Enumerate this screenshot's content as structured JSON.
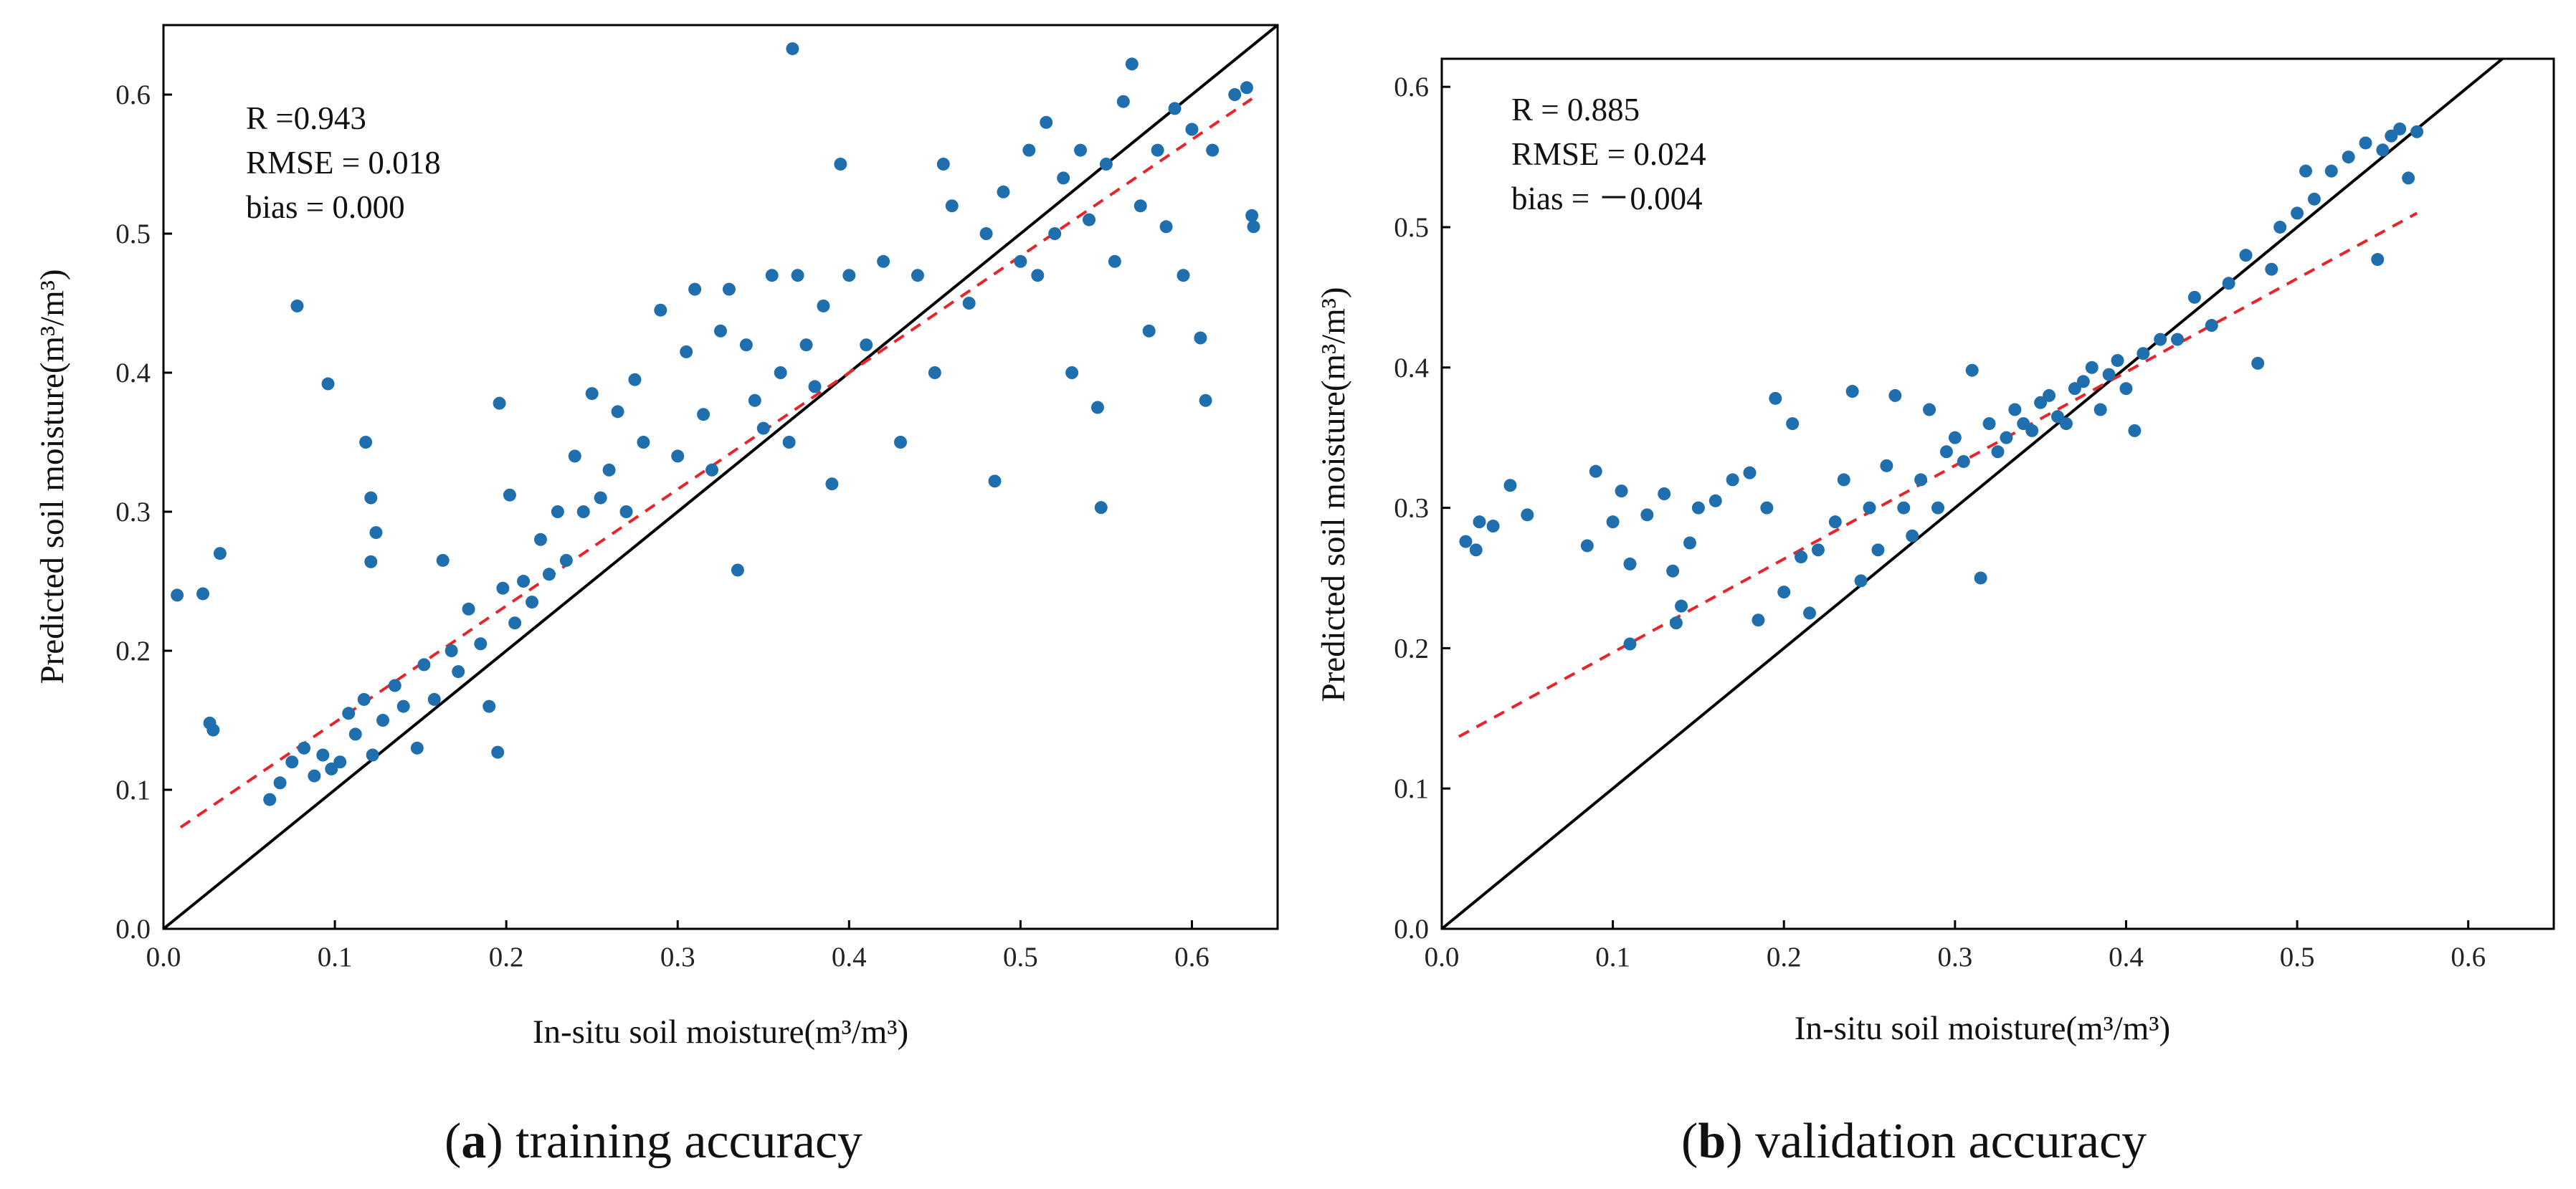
{
  "colors": {
    "points": "#1f6fae",
    "one_to_one": "#000000",
    "fit": "#e8242a"
  },
  "chart_data": [
    {
      "id": "a",
      "type": "scatter",
      "xlabel": "In-situ soil moisture(m³/m³)",
      "ylabel": "Predicted soil moisture(m³/m³)",
      "xlim": [
        0,
        0.65
      ],
      "ylim": [
        0,
        0.65
      ],
      "xticks": [
        "0.0",
        "0.1",
        "0.2",
        "0.3",
        "0.4",
        "0.5",
        "0.6"
      ],
      "yticks": [
        "0.0",
        "0.1",
        "0.2",
        "0.3",
        "0.4",
        "0.5",
        "0.6"
      ],
      "stats": [
        "R =0.943",
        "RMSE = 0.018",
        "bias = 0.000"
      ],
      "one_to_one": [
        [
          0,
          0
        ],
        [
          0.65,
          0.65
        ]
      ],
      "fit_line": [
        [
          0.01,
          0.073
        ],
        [
          0.635,
          0.597
        ]
      ],
      "caption_bold": "a",
      "caption_text": " training accuracy",
      "points": [
        [
          0.367,
          0.633
        ],
        [
          0.008,
          0.24
        ],
        [
          0.023,
          0.241
        ],
        [
          0.033,
          0.27
        ],
        [
          0.027,
          0.148
        ],
        [
          0.029,
          0.143
        ],
        [
          0.078,
          0.448
        ],
        [
          0.096,
          0.392
        ],
        [
          0.118,
          0.35
        ],
        [
          0.121,
          0.31
        ],
        [
          0.124,
          0.285
        ],
        [
          0.121,
          0.264
        ],
        [
          0.062,
          0.093
        ],
        [
          0.068,
          0.105
        ],
        [
          0.075,
          0.12
        ],
        [
          0.082,
          0.13
        ],
        [
          0.088,
          0.11
        ],
        [
          0.093,
          0.125
        ],
        [
          0.098,
          0.115
        ],
        [
          0.103,
          0.12
        ],
        [
          0.108,
          0.155
        ],
        [
          0.112,
          0.14
        ],
        [
          0.117,
          0.165
        ],
        [
          0.122,
          0.125
        ],
        [
          0.128,
          0.15
        ],
        [
          0.135,
          0.175
        ],
        [
          0.14,
          0.16
        ],
        [
          0.148,
          0.13
        ],
        [
          0.152,
          0.19
        ],
        [
          0.158,
          0.165
        ],
        [
          0.163,
          0.265
        ],
        [
          0.168,
          0.2
        ],
        [
          0.172,
          0.185
        ],
        [
          0.178,
          0.23
        ],
        [
          0.185,
          0.205
        ],
        [
          0.19,
          0.16
        ],
        [
          0.195,
          0.127
        ],
        [
          0.196,
          0.378
        ],
        [
          0.198,
          0.245
        ],
        [
          0.202,
          0.312
        ],
        [
          0.205,
          0.22
        ],
        [
          0.21,
          0.25
        ],
        [
          0.215,
          0.235
        ],
        [
          0.22,
          0.28
        ],
        [
          0.225,
          0.255
        ],
        [
          0.23,
          0.3
        ],
        [
          0.235,
          0.265
        ],
        [
          0.24,
          0.34
        ],
        [
          0.245,
          0.3
        ],
        [
          0.25,
          0.385
        ],
        [
          0.255,
          0.31
        ],
        [
          0.26,
          0.33
        ],
        [
          0.265,
          0.372
        ],
        [
          0.27,
          0.3
        ],
        [
          0.275,
          0.395
        ],
        [
          0.28,
          0.35
        ],
        [
          0.29,
          0.445
        ],
        [
          0.3,
          0.34
        ],
        [
          0.305,
          0.415
        ],
        [
          0.31,
          0.46
        ],
        [
          0.315,
          0.37
        ],
        [
          0.32,
          0.33
        ],
        [
          0.325,
          0.43
        ],
        [
          0.33,
          0.46
        ],
        [
          0.335,
          0.258
        ],
        [
          0.34,
          0.42
        ],
        [
          0.345,
          0.38
        ],
        [
          0.35,
          0.36
        ],
        [
          0.355,
          0.47
        ],
        [
          0.36,
          0.4
        ],
        [
          0.365,
          0.35
        ],
        [
          0.37,
          0.47
        ],
        [
          0.375,
          0.42
        ],
        [
          0.38,
          0.39
        ],
        [
          0.385,
          0.448
        ],
        [
          0.39,
          0.32
        ],
        [
          0.395,
          0.55
        ],
        [
          0.4,
          0.47
        ],
        [
          0.41,
          0.42
        ],
        [
          0.42,
          0.48
        ],
        [
          0.43,
          0.35
        ],
        [
          0.44,
          0.47
        ],
        [
          0.45,
          0.4
        ],
        [
          0.455,
          0.55
        ],
        [
          0.46,
          0.52
        ],
        [
          0.47,
          0.45
        ],
        [
          0.48,
          0.5
        ],
        [
          0.485,
          0.322
        ],
        [
          0.49,
          0.53
        ],
        [
          0.5,
          0.48
        ],
        [
          0.505,
          0.56
        ],
        [
          0.51,
          0.47
        ],
        [
          0.515,
          0.58
        ],
        [
          0.52,
          0.5
        ],
        [
          0.525,
          0.54
        ],
        [
          0.53,
          0.4
        ],
        [
          0.535,
          0.56
        ],
        [
          0.54,
          0.51
        ],
        [
          0.545,
          0.375
        ],
        [
          0.547,
          0.303
        ],
        [
          0.55,
          0.55
        ],
        [
          0.555,
          0.48
        ],
        [
          0.56,
          0.595
        ],
        [
          0.565,
          0.622
        ],
        [
          0.57,
          0.52
        ],
        [
          0.575,
          0.43
        ],
        [
          0.58,
          0.56
        ],
        [
          0.585,
          0.505
        ],
        [
          0.59,
          0.59
        ],
        [
          0.595,
          0.47
        ],
        [
          0.6,
          0.575
        ],
        [
          0.605,
          0.425
        ],
        [
          0.608,
          0.38
        ],
        [
          0.612,
          0.56
        ],
        [
          0.625,
          0.6
        ],
        [
          0.632,
          0.605
        ],
        [
          0.635,
          0.513
        ],
        [
          0.636,
          0.505
        ]
      ]
    },
    {
      "id": "b",
      "type": "scatter",
      "xlabel": "In-situ soil moisture(m³/m³)",
      "ylabel": "Predicted soil moisture(m³/m³)",
      "xlim": [
        0,
        0.65
      ],
      "ylim": [
        0,
        0.62
      ],
      "xticks": [
        "0.0",
        "0.1",
        "0.2",
        "0.3",
        "0.4",
        "0.5",
        "0.6"
      ],
      "yticks": [
        "0.0",
        "0.1",
        "0.2",
        "0.3",
        "0.4",
        "0.5",
        "0.6"
      ],
      "stats": [
        "R = 0.885",
        "RMSE = 0.024",
        "bias = －0.004"
      ],
      "one_to_one": [
        [
          0,
          0
        ],
        [
          0.62,
          0.62
        ]
      ],
      "fit_line": [
        [
          0.01,
          0.137
        ],
        [
          0.57,
          0.51
        ]
      ],
      "caption_bold": "b",
      "caption_text": " validation accuracy",
      "points": [
        [
          0.014,
          0.276
        ],
        [
          0.022,
          0.29
        ],
        [
          0.03,
          0.287
        ],
        [
          0.04,
          0.316
        ],
        [
          0.05,
          0.295
        ],
        [
          0.02,
          0.27
        ],
        [
          0.085,
          0.273
        ],
        [
          0.09,
          0.326
        ],
        [
          0.1,
          0.29
        ],
        [
          0.105,
          0.312
        ],
        [
          0.11,
          0.26
        ],
        [
          0.11,
          0.203
        ],
        [
          0.12,
          0.295
        ],
        [
          0.13,
          0.31
        ],
        [
          0.135,
          0.255
        ],
        [
          0.137,
          0.218
        ],
        [
          0.14,
          0.23
        ],
        [
          0.145,
          0.275
        ],
        [
          0.15,
          0.3
        ],
        [
          0.16,
          0.305
        ],
        [
          0.17,
          0.32
        ],
        [
          0.18,
          0.325
        ],
        [
          0.185,
          0.22
        ],
        [
          0.19,
          0.3
        ],
        [
          0.195,
          0.378
        ],
        [
          0.2,
          0.24
        ],
        [
          0.205,
          0.36
        ],
        [
          0.21,
          0.265
        ],
        [
          0.215,
          0.225
        ],
        [
          0.22,
          0.27
        ],
        [
          0.23,
          0.29
        ],
        [
          0.235,
          0.32
        ],
        [
          0.24,
          0.383
        ],
        [
          0.245,
          0.248
        ],
        [
          0.25,
          0.3
        ],
        [
          0.255,
          0.27
        ],
        [
          0.26,
          0.33
        ],
        [
          0.265,
          0.38
        ],
        [
          0.27,
          0.3
        ],
        [
          0.275,
          0.28
        ],
        [
          0.28,
          0.32
        ],
        [
          0.285,
          0.37
        ],
        [
          0.29,
          0.3
        ],
        [
          0.295,
          0.34
        ],
        [
          0.3,
          0.35
        ],
        [
          0.305,
          0.333
        ],
        [
          0.31,
          0.398
        ],
        [
          0.315,
          0.25
        ],
        [
          0.32,
          0.36
        ],
        [
          0.325,
          0.34
        ],
        [
          0.33,
          0.35
        ],
        [
          0.335,
          0.37
        ],
        [
          0.34,
          0.36
        ],
        [
          0.345,
          0.355
        ],
        [
          0.35,
          0.375
        ],
        [
          0.355,
          0.38
        ],
        [
          0.36,
          0.365
        ],
        [
          0.365,
          0.36
        ],
        [
          0.37,
          0.385
        ],
        [
          0.375,
          0.39
        ],
        [
          0.38,
          0.4
        ],
        [
          0.385,
          0.37
        ],
        [
          0.39,
          0.395
        ],
        [
          0.395,
          0.405
        ],
        [
          0.4,
          0.385
        ],
        [
          0.405,
          0.355
        ],
        [
          0.41,
          0.41
        ],
        [
          0.42,
          0.42
        ],
        [
          0.43,
          0.42
        ],
        [
          0.44,
          0.45
        ],
        [
          0.45,
          0.43
        ],
        [
          0.46,
          0.46
        ],
        [
          0.47,
          0.48
        ],
        [
          0.477,
          0.403
        ],
        [
          0.485,
          0.47
        ],
        [
          0.49,
          0.5
        ],
        [
          0.5,
          0.51
        ],
        [
          0.505,
          0.54
        ],
        [
          0.51,
          0.52
        ],
        [
          0.52,
          0.54
        ],
        [
          0.53,
          0.55
        ],
        [
          0.54,
          0.56
        ],
        [
          0.547,
          0.477
        ],
        [
          0.55,
          0.555
        ],
        [
          0.555,
          0.565
        ],
        [
          0.56,
          0.57
        ],
        [
          0.565,
          0.535
        ],
        [
          0.57,
          0.568
        ]
      ]
    }
  ]
}
